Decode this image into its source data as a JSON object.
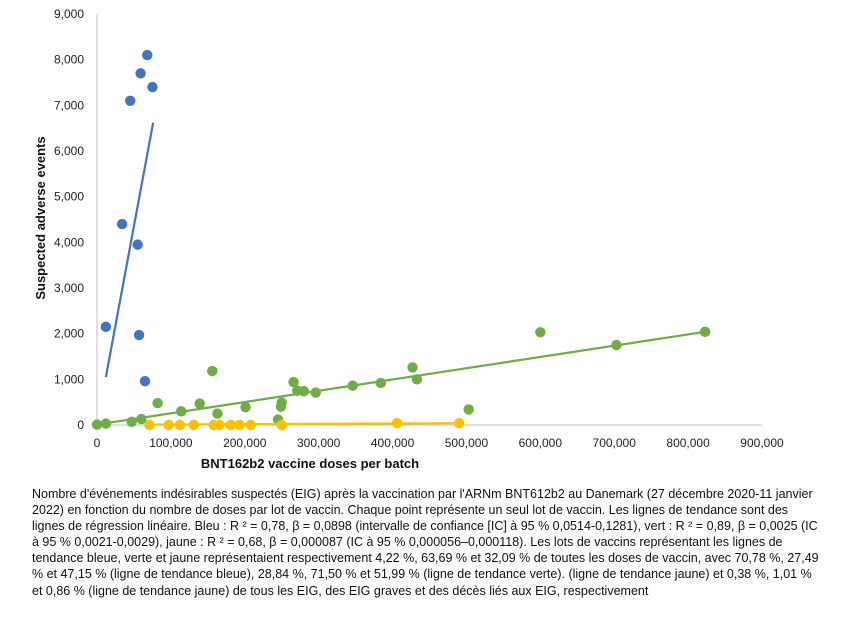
{
  "chart_data": {
    "type": "scatter",
    "xlabel": "BNT162b2 vaccine doses per batch",
    "ylabel": "Suspected adverse events",
    "xlim": [
      0,
      900000
    ],
    "ylim": [
      0,
      9000
    ],
    "x_ticks": [
      0,
      100000,
      200000,
      300000,
      400000,
      500000,
      600000,
      700000,
      800000,
      900000
    ],
    "y_ticks": [
      0,
      1000,
      2000,
      3000,
      4000,
      5000,
      6000,
      7000,
      8000,
      9000
    ],
    "x_tick_labels": [
      "0",
      "100,000",
      "200,000",
      "300,000",
      "400,000",
      "500,000",
      "600,000",
      "700,000",
      "800,000",
      "900,000"
    ],
    "y_tick_labels": [
      "0",
      "1,000",
      "2,000",
      "3,000",
      "4,000",
      "5,000",
      "6,000",
      "7,000",
      "8,000",
      "9,000"
    ],
    "grid": false,
    "series": [
      {
        "color": "#4472c4",
        "points": [
          [
            12000,
            2150
          ],
          [
            34000,
            4400
          ],
          [
            45000,
            7100
          ],
          [
            55000,
            3950
          ],
          [
            57000,
            1970
          ],
          [
            59000,
            7700
          ],
          [
            65000,
            960
          ],
          [
            68000,
            8100
          ],
          [
            75000,
            7400
          ]
        ],
        "trendline": [
          [
            12000,
            1050
          ],
          [
            76000,
            6620
          ]
        ]
      },
      {
        "color": "#70ad47",
        "points": [
          [
            0,
            10
          ],
          [
            12000,
            30
          ],
          [
            47000,
            70
          ],
          [
            60000,
            130
          ],
          [
            82000,
            480
          ],
          [
            114000,
            300
          ],
          [
            139000,
            470
          ],
          [
            156000,
            1180
          ],
          [
            163000,
            250
          ],
          [
            201000,
            390
          ],
          [
            245000,
            120
          ],
          [
            249000,
            400
          ],
          [
            250000,
            490
          ],
          [
            266000,
            940
          ],
          [
            271000,
            750
          ],
          [
            280000,
            740
          ],
          [
            296000,
            710
          ],
          [
            346000,
            860
          ],
          [
            384000,
            920
          ],
          [
            427000,
            1260
          ],
          [
            433000,
            1000
          ],
          [
            503000,
            340
          ],
          [
            600000,
            2030
          ],
          [
            703000,
            1750
          ],
          [
            823000,
            2040
          ]
        ],
        "trendline": [
          [
            0,
            10
          ],
          [
            823000,
            2040
          ]
        ]
      },
      {
        "color": "#ffc000",
        "points": [
          [
            71000,
            0
          ],
          [
            97000,
            0
          ],
          [
            112000,
            0
          ],
          [
            131000,
            0
          ],
          [
            158000,
            0
          ],
          [
            166000,
            0
          ],
          [
            181000,
            0
          ],
          [
            193000,
            0
          ],
          [
            208000,
            0
          ],
          [
            250000,
            0
          ],
          [
            406000,
            40
          ],
          [
            490000,
            40
          ]
        ],
        "trendline": [
          [
            71000,
            8
          ],
          [
            490000,
            40
          ]
        ]
      }
    ]
  },
  "caption": "Nombre d'événements indésirables suspectés (EIG) après la vaccination par l'ARNm BNT612b2 au Danemark (27 décembre 2020-11 janvier 2022) en fonction du nombre de doses par lot de vaccin. Chaque point représente un seul lot de vaccin. Les lignes de tendance sont des lignes de régression linéaire. Bleu : R ² = 0,78, β = 0,0898 (intervalle de confiance [IC] à 95 % 0,0514-0,1281), vert : R ² = 0,89, β = 0,0025 (IC à 95 % 0,0021-0,0029), jaune : R ² = 0,68, β = 0,000087 (IC à 95 % 0,000056–0,000118). Les lots de vaccins représentant les lignes de tendance bleue, verte et jaune représentaient respectivement 4,22 %, 63,69 % et 32,09 % de toutes les doses de vaccin, avec 70,78 %, 27,49 % et 47,15 % (ligne de tendance bleue), 28,84 %, 71,50 % et 51,99 % (ligne de tendance verte). (ligne de tendance jaune) et 0,38 %, 1,01 % et 0,86 % (ligne de tendance jaune) de tous les EIG, des EIG graves et des décès liés aux EIG, respectivement"
}
